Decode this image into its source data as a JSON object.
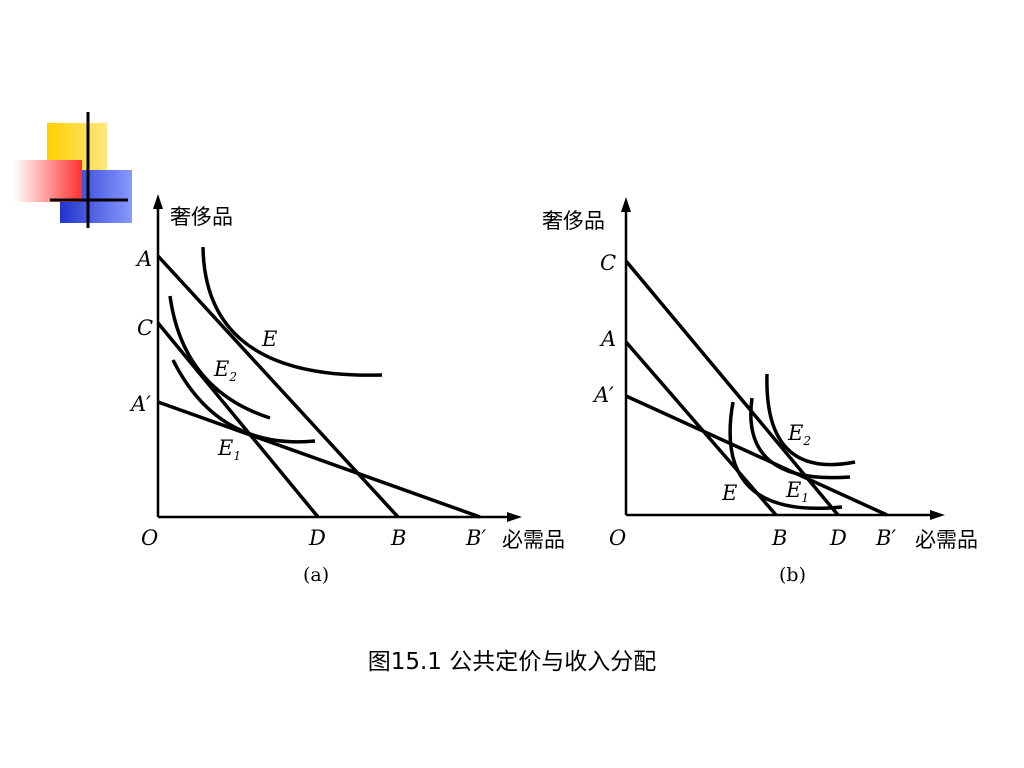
{
  "caption": "图15.1 公共定价与收入分配",
  "panel_a": {
    "y_axis_label": "奢侈品",
    "x_axis_label": "必需品",
    "origin": "O",
    "points": {
      "A": "A",
      "C": "C",
      "A_prime": "A′",
      "D": "D",
      "B": "B",
      "B_prime": "B′",
      "E": "E",
      "E2_base": "E",
      "E2_sub": "2",
      "E1_base": "E",
      "E1_sub": "1"
    },
    "label": "(a)"
  },
  "panel_b": {
    "y_axis_label": "奢侈品",
    "x_axis_label": "必需品",
    "origin": "O",
    "points": {
      "C": "C",
      "A": "A",
      "A_prime": "A′",
      "B": "B",
      "D": "D",
      "B_prime": "B′",
      "E": "E",
      "E2_base": "E",
      "E2_sub": "2",
      "E1_base": "E",
      "E1_sub": "1"
    },
    "label": "(b)"
  },
  "colors": {
    "accent_yellow": "#ffd700",
    "accent_blue": "#2f3fd6",
    "accent_red": "#ff4040"
  }
}
